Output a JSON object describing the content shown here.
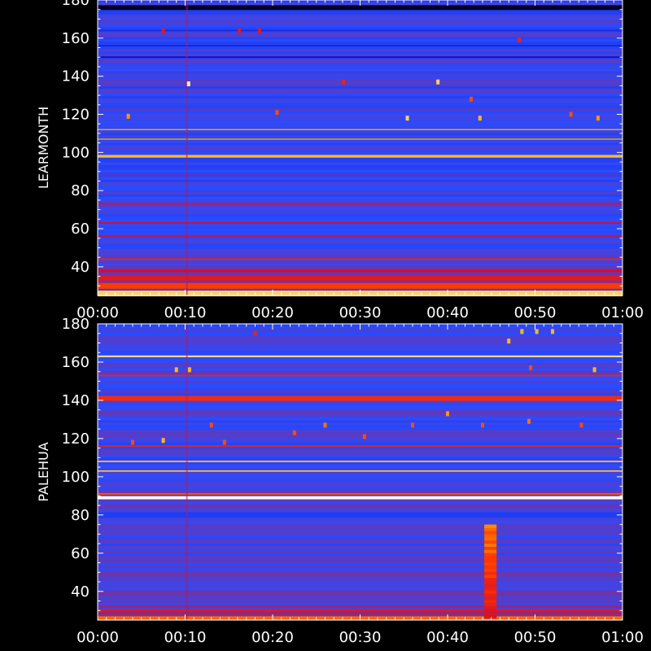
{
  "chart_data": [
    {
      "type": "heatmap",
      "ylabel": "LEARMONTH",
      "x_ticks": [
        "00:00",
        "00:10",
        "00:20",
        "00:30",
        "00:40",
        "00:50",
        "01:00"
      ],
      "y_ticks": [
        40,
        60,
        80,
        100,
        120,
        140,
        160,
        180
      ],
      "xlim": [
        "00:00",
        "01:00"
      ],
      "ylim": [
        25,
        180
      ],
      "colormap": [
        "#000018",
        "#0000b4",
        "#2a4cff",
        "#d01030",
        "#ff3000",
        "#ffb000",
        "#ffffff"
      ],
      "background_level": 0.34,
      "bands": [
        {
          "y": 26,
          "width": 3,
          "level": 0.9
        },
        {
          "y": 30,
          "width": 3,
          "level": 0.68
        },
        {
          "y": 34,
          "width": 2.5,
          "level": 0.55
        },
        {
          "y": 38,
          "width": 1.5,
          "level": 0.5
        },
        {
          "y": 44,
          "width": 0.8,
          "level": 0.6
        },
        {
          "y": 56,
          "width": 1.2,
          "level": 0.46
        },
        {
          "y": 63,
          "width": 0.8,
          "level": 0.5
        },
        {
          "y": 73,
          "width": 1,
          "level": 0.44
        },
        {
          "y": 88,
          "width": 0.6,
          "level": 0.46
        },
        {
          "y": 98,
          "width": 1.4,
          "level": 0.86
        },
        {
          "y": 107,
          "width": 0.6,
          "level": 0.82
        },
        {
          "y": 112,
          "width": 0.6,
          "level": 0.82
        },
        {
          "y": 150,
          "width": 0.8,
          "level": 0.2
        },
        {
          "y": 156,
          "width": 0.6,
          "level": 0.22
        },
        {
          "y": 164,
          "width": 0.8,
          "level": 0.26
        },
        {
          "y": 176,
          "width": 2.5,
          "level": 0.02
        }
      ],
      "blips": [
        {
          "x": 10.4,
          "y": 136,
          "level": 0.95
        },
        {
          "x": 3.5,
          "y": 119,
          "level": 0.8
        },
        {
          "x": 20.5,
          "y": 121,
          "level": 0.7
        },
        {
          "x": 35.4,
          "y": 118,
          "level": 0.9
        },
        {
          "x": 38.9,
          "y": 137,
          "level": 0.9
        },
        {
          "x": 42.7,
          "y": 128,
          "level": 0.7
        },
        {
          "x": 43.7,
          "y": 118,
          "level": 0.85
        },
        {
          "x": 54.1,
          "y": 120,
          "level": 0.7
        },
        {
          "x": 57.2,
          "y": 118,
          "level": 0.8
        },
        {
          "x": 28.1,
          "y": 137,
          "level": 0.6
        },
        {
          "x": 48.2,
          "y": 159,
          "level": 0.6
        },
        {
          "x": 18.5,
          "y": 164,
          "level": 0.55
        },
        {
          "x": 16.2,
          "y": 164,
          "level": 0.55
        },
        {
          "x": 7.5,
          "y": 164,
          "level": 0.55
        }
      ],
      "bursts": []
    },
    {
      "type": "heatmap",
      "ylabel": "PALEHUA",
      "x_ticks": [
        "00:00",
        "00:10",
        "00:20",
        "00:30",
        "00:40",
        "00:50",
        "01:00"
      ],
      "y_ticks": [
        40,
        60,
        80,
        100,
        120,
        140,
        160,
        180
      ],
      "xlim": [
        "00:00",
        "01:00"
      ],
      "ylim": [
        25,
        180
      ],
      "colormap": [
        "#000018",
        "#0000b4",
        "#2a4cff",
        "#d01030",
        "#ff3000",
        "#ffb000",
        "#ffffff"
      ],
      "background_level": 0.35,
      "bands": [
        {
          "y": 26,
          "width": 2,
          "level": 0.74
        },
        {
          "y": 30,
          "width": 1,
          "level": 0.55
        },
        {
          "y": 89,
          "width": 1.6,
          "level": 1.0
        },
        {
          "y": 91,
          "width": 1,
          "level": 0.7
        },
        {
          "y": 103,
          "width": 0.7,
          "level": 0.88
        },
        {
          "y": 108,
          "width": 0.7,
          "level": 0.88
        },
        {
          "y": 116,
          "width": 0.6,
          "level": 0.6
        },
        {
          "y": 141,
          "width": 2.5,
          "level": 0.64
        },
        {
          "y": 153,
          "width": 0.8,
          "level": 0.6
        },
        {
          "y": 163,
          "width": 0.9,
          "level": 0.92
        },
        {
          "y": 80,
          "width": 3,
          "level": 0.3
        }
      ],
      "blips": [
        {
          "x": 9.0,
          "y": 156,
          "level": 0.85
        },
        {
          "x": 10.5,
          "y": 156,
          "level": 0.85
        },
        {
          "x": 4.0,
          "y": 118,
          "level": 0.7
        },
        {
          "x": 7.5,
          "y": 119,
          "level": 0.85
        },
        {
          "x": 14.5,
          "y": 118,
          "level": 0.7
        },
        {
          "x": 22.5,
          "y": 123,
          "level": 0.7
        },
        {
          "x": 26.0,
          "y": 127,
          "level": 0.75
        },
        {
          "x": 30.5,
          "y": 121,
          "level": 0.7
        },
        {
          "x": 44.0,
          "y": 127,
          "level": 0.7
        },
        {
          "x": 47.0,
          "y": 171,
          "level": 0.85
        },
        {
          "x": 48.5,
          "y": 176,
          "level": 0.85
        },
        {
          "x": 50.2,
          "y": 176,
          "level": 0.85
        },
        {
          "x": 52.0,
          "y": 176,
          "level": 0.85
        },
        {
          "x": 49.5,
          "y": 157,
          "level": 0.7
        },
        {
          "x": 56.8,
          "y": 156,
          "level": 0.85
        },
        {
          "x": 55.3,
          "y": 127,
          "level": 0.7
        },
        {
          "x": 49.3,
          "y": 129,
          "level": 0.75
        },
        {
          "x": 18.0,
          "y": 175,
          "level": 0.6
        },
        {
          "x": 40.0,
          "y": 133,
          "level": 0.8
        },
        {
          "x": 36.0,
          "y": 127,
          "level": 0.7
        },
        {
          "x": 13.0,
          "y": 127,
          "level": 0.7
        }
      ],
      "bursts": [
        {
          "x_start": 44.2,
          "x_end": 45.6,
          "y_min": 26,
          "y_max": 75,
          "level": 0.55
        }
      ]
    }
  ]
}
